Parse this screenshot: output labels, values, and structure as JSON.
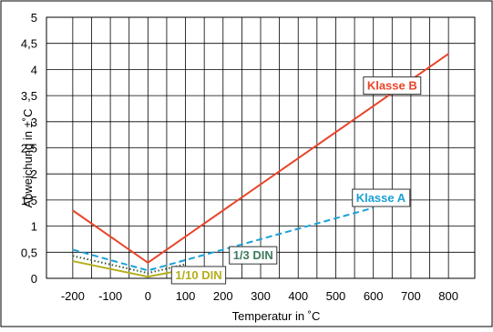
{
  "chart_data": {
    "type": "line",
    "xlabel": "Temperatur in ˚C",
    "ylabel": "Abweichung in ±˚C",
    "xlim": [
      -270,
      870
    ],
    "ylim": [
      0,
      5
    ],
    "x_ticks": [
      -200,
      -100,
      0,
      100,
      200,
      300,
      400,
      500,
      600,
      700,
      800
    ],
    "x_tick_labels": [
      "-200",
      "-100",
      "0",
      "100",
      "200",
      "300",
      "400",
      "500",
      "600",
      "700",
      "800"
    ],
    "y_ticks": [
      0,
      0.5,
      1,
      1.5,
      2,
      2.5,
      3,
      3.5,
      4,
      4.5,
      5
    ],
    "y_tick_labels": [
      "0",
      "0,5",
      "1",
      "1,5",
      "2",
      "2,5",
      "3",
      "3,5",
      "4",
      "4,5",
      "5"
    ],
    "grid": true,
    "series": [
      {
        "name": "Klasse B",
        "color": "#e8452a",
        "style": "solid",
        "label_at": [
          650,
          3.7
        ],
        "label_color": "#e8452a",
        "points": [
          [
            -200,
            1.3
          ],
          [
            0,
            0.3
          ],
          [
            800,
            4.3
          ]
        ]
      },
      {
        "name": "Klasse A",
        "color": "#1aa0d8",
        "style": "dashed",
        "label_at": [
          620,
          1.55
        ],
        "label_color": "#1aa0d8",
        "points": [
          [
            -200,
            0.55
          ],
          [
            0,
            0.15
          ],
          [
            600,
            1.35
          ]
        ]
      },
      {
        "name": "1/3 DIN",
        "color": "#3b5a3b",
        "style": "dotted",
        "label_at": [
          280,
          0.45
        ],
        "label_color": "#3e7b5e",
        "points": [
          [
            -200,
            0.43
          ],
          [
            0,
            0.1
          ],
          [
            100,
            0.27
          ]
        ]
      },
      {
        "name": "1/10 DIN",
        "color": "#b5ae1c",
        "style": "solid",
        "label_at": [
          135,
          0.07
        ],
        "label_color": "#b5ae1c",
        "points": [
          [
            -200,
            0.33
          ],
          [
            0,
            0.03
          ],
          [
            100,
            0.17
          ]
        ]
      }
    ]
  }
}
